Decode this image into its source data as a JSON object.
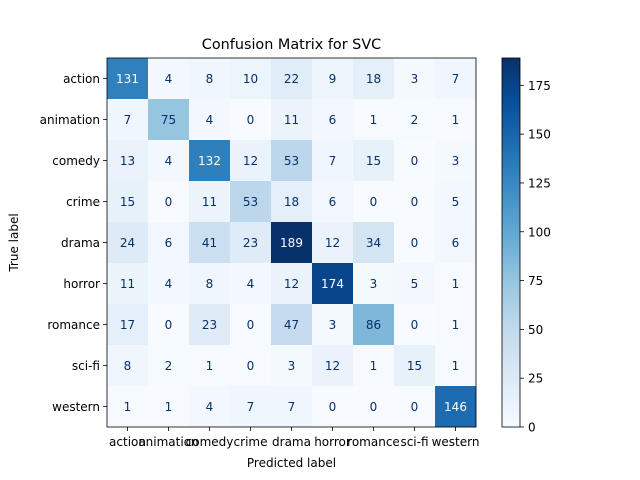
{
  "chart_data": {
    "type": "heatmap",
    "title": "Confusion Matrix for SVC",
    "xlabel": "Predicted label",
    "ylabel": "True label",
    "x_categories": [
      "action",
      "animation",
      "comedy",
      "crime",
      "drama",
      "horror",
      "romance",
      "sci-fi",
      "western"
    ],
    "y_categories": [
      "action",
      "animation",
      "comedy",
      "crime",
      "drama",
      "horror",
      "romance",
      "sci-fi",
      "western"
    ],
    "matrix": [
      [
        131,
        4,
        8,
        10,
        22,
        9,
        18,
        3,
        7
      ],
      [
        7,
        75,
        4,
        0,
        11,
        6,
        1,
        2,
        1
      ],
      [
        13,
        4,
        132,
        12,
        53,
        7,
        15,
        0,
        3
      ],
      [
        15,
        0,
        11,
        53,
        18,
        6,
        0,
        0,
        5
      ],
      [
        24,
        6,
        41,
        23,
        189,
        12,
        34,
        0,
        6
      ],
      [
        11,
        4,
        8,
        4,
        12,
        174,
        3,
        5,
        1
      ],
      [
        17,
        0,
        23,
        0,
        47,
        3,
        86,
        0,
        1
      ],
      [
        8,
        2,
        1,
        0,
        3,
        12,
        1,
        15,
        1
      ],
      [
        1,
        1,
        4,
        7,
        7,
        0,
        0,
        0,
        146
      ]
    ],
    "colormap": "Blues",
    "vmin": 0,
    "vmax": 189,
    "colorbar_ticks": [
      0,
      25,
      50,
      75,
      100,
      125,
      150,
      175
    ],
    "grid": false
  }
}
